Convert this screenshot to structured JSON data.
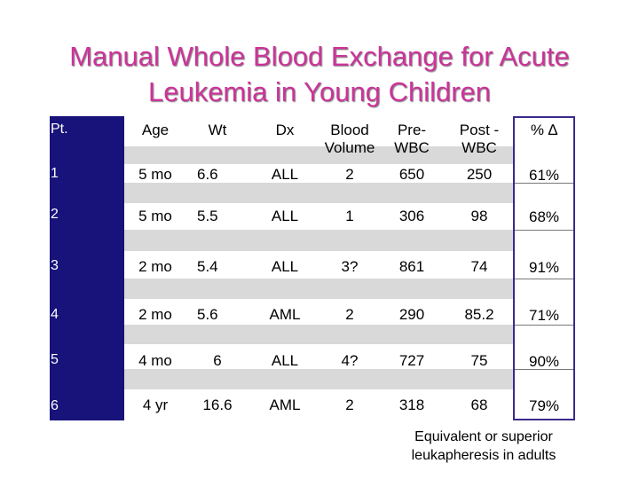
{
  "slide": {
    "title_line1": "Manual Whole Blood Exchange for Acute",
    "title_line2": "Leukemia in Young Children"
  },
  "table": {
    "headers": {
      "pt": "Pt.",
      "age": "Age",
      "wt": "Wt",
      "dx": "Dx",
      "blood_volume_1": "Blood",
      "blood_volume_2": "Volume",
      "pre_wbc_1": "Pre-",
      "pre_wbc_2": "WBC",
      "post_wbc_1": "Post -",
      "post_wbc_2": "WBC",
      "pct_change": "% ∆"
    },
    "rows": [
      {
        "pt": "1",
        "age": "5 mo",
        "wt": "6.6",
        "dx": "ALL",
        "blood_volume": "2",
        "pre_wbc": "650",
        "post_wbc": "250",
        "pct_change": "61%"
      },
      {
        "pt": "2",
        "age": "5 mo",
        "wt": "5.5",
        "dx": "ALL",
        "blood_volume": "1",
        "pre_wbc": "306",
        "post_wbc": "98",
        "pct_change": "68%"
      },
      {
        "pt": "3",
        "age": "2 mo",
        "wt": "5.4",
        "dx": "ALL",
        "blood_volume": "3?",
        "pre_wbc": "861",
        "post_wbc": "74",
        "pct_change": "91%"
      },
      {
        "pt": "4",
        "age": "2 mo",
        "wt": "5.6",
        "dx": "AML",
        "blood_volume": "2",
        "pre_wbc": "290",
        "post_wbc": "85.2",
        "pct_change": "71%"
      },
      {
        "pt": "5",
        "age": "4 mo",
        "wt": "6",
        "dx": "ALL",
        "blood_volume": "4?",
        "pre_wbc": "727",
        "post_wbc": "75",
        "pct_change": "90%"
      },
      {
        "pt": "6",
        "age": "4 yr",
        "wt": "16.6",
        "dx": "AML",
        "blood_volume": "2",
        "pre_wbc": "318",
        "post_wbc": "68",
        "pct_change": "79%"
      }
    ]
  },
  "footnote": {
    "line1": "Equivalent or superior",
    "line2": "leukapheresis in adults"
  }
}
